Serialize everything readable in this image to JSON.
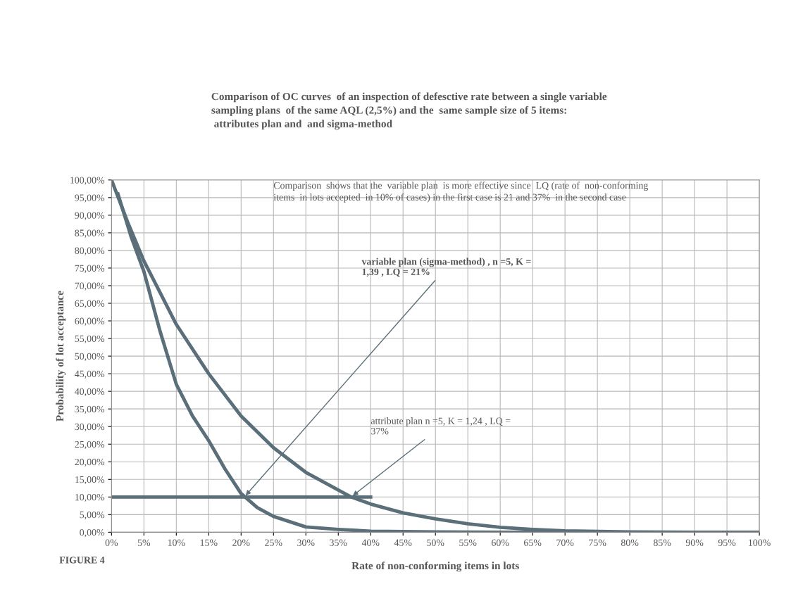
{
  "chart_data": {
    "type": "line",
    "title": "Comparison of OC curves  of an inspection of defesctive rate between a single variable\nsampling plans  of the same AQL (2,5%) and the  same sample size of 5 items:\n attributes plan and  and sigma-method",
    "xlabel": "Rate of non-conforming items in lots",
    "ylabel": "Probability of lot acceptance",
    "series": [
      {
        "color": "#5b6f7a",
        "x": [
          1,
          2,
          3,
          5,
          7.5,
          10,
          12.5,
          15,
          17.5,
          20,
          22.5,
          25,
          30,
          35,
          40,
          50,
          60,
          70,
          80,
          90,
          100
        ],
        "values": [
          96,
          90,
          84,
          74,
          57,
          42,
          33,
          26,
          18,
          11,
          7,
          4.5,
          1.5,
          0.8,
          0.3,
          0.1,
          0,
          0,
          0,
          0,
          0
        ]
      },
      {
        "color": "#5b6f7a",
        "x": [
          0,
          2.5,
          5,
          7.5,
          10,
          15,
          20,
          25,
          30,
          35,
          37,
          40,
          45,
          50,
          55,
          60,
          65,
          70,
          80,
          90,
          100
        ],
        "values": [
          100,
          88,
          77,
          68,
          59,
          45,
          33,
          24,
          17,
          12,
          10,
          8,
          5.5,
          3.8,
          2.4,
          1.4,
          0.8,
          0.4,
          0.1,
          0,
          0
        ]
      },
      {
        "color": "#5b6f7a",
        "x": [
          0,
          40
        ],
        "values": [
          10,
          10
        ]
      }
    ],
    "xlim": [
      0,
      100
    ],
    "ylim": [
      0,
      100
    ],
    "xticks": [
      {
        "value": 0,
        "label": "0%"
      },
      {
        "value": 5,
        "label": "5%"
      },
      {
        "value": 10,
        "label": "10%"
      },
      {
        "value": 15,
        "label": "15%"
      },
      {
        "value": 20,
        "label": "20%"
      },
      {
        "value": 25,
        "label": "25%"
      },
      {
        "value": 30,
        "label": "30%"
      },
      {
        "value": 35,
        "label": "35%"
      },
      {
        "value": 40,
        "label": "40%"
      },
      {
        "value": 45,
        "label": "45%"
      },
      {
        "value": 50,
        "label": "50%"
      },
      {
        "value": 55,
        "label": "55%"
      },
      {
        "value": 60,
        "label": "60%"
      },
      {
        "value": 65,
        "label": "65%"
      },
      {
        "value": 70,
        "label": "70%"
      },
      {
        "value": 75,
        "label": "75%"
      },
      {
        "value": 80,
        "label": "80%"
      },
      {
        "value": 85,
        "label": "85%"
      },
      {
        "value": 90,
        "label": "90%"
      },
      {
        "value": 95,
        "label": "95%"
      },
      {
        "value": 100,
        "label": "100%"
      }
    ],
    "yticks": [
      {
        "value": 0,
        "label": "0,00%"
      },
      {
        "value": 5,
        "label": "5,00%"
      },
      {
        "value": 10,
        "label": "10,00%"
      },
      {
        "value": 15,
        "label": "15,00%"
      },
      {
        "value": 20,
        "label": "20,00%"
      },
      {
        "value": 25,
        "label": "25,00%"
      },
      {
        "value": 30,
        "label": "30,00%"
      },
      {
        "value": 35,
        "label": "35,00%"
      },
      {
        "value": 40,
        "label": "40,00%"
      },
      {
        "value": 45,
        "label": "45,00%"
      },
      {
        "value": 50,
        "label": "50,00%"
      },
      {
        "value": 55,
        "label": "55,00%"
      },
      {
        "value": 60,
        "label": "60,00%"
      },
      {
        "value": 65,
        "label": "65,00%"
      },
      {
        "value": 70,
        "label": "70,00%"
      },
      {
        "value": 75,
        "label": "75,00%"
      },
      {
        "value": 80,
        "label": "80,00%"
      },
      {
        "value": 85,
        "label": "85,00%"
      },
      {
        "value": 90,
        "label": "90,00%"
      },
      {
        "value": 95,
        "label": "95,00%"
      },
      {
        "value": 100,
        "label": "100,00%"
      }
    ],
    "grid": true,
    "legend": false,
    "marker": "none",
    "line_style": "solid",
    "annotations": [
      {
        "text": "variable plan (sigma-method) , n =5, K =\n1,39 , LQ = 21%",
        "x": 20.5,
        "y": 10
      },
      {
        "text": "attribute plan n =5, K = 1,24 , LQ =\n37%",
        "x": 37,
        "y": 10
      },
      "Comparison  shows that the  variable plan  is more effective since  LQ (rate of  non-conforming\nitems  in lots accepted  in 10% of cases) in the first case is 21 and 37%  in the second case",
      "FIGURE 4"
    ]
  }
}
